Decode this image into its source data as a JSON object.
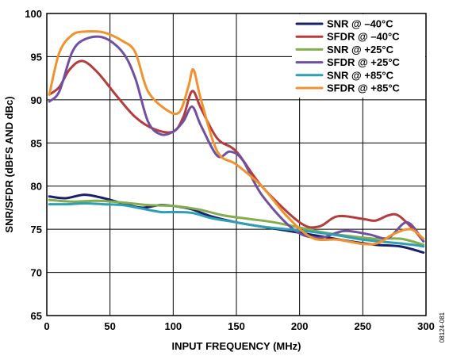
{
  "chart_data": {
    "type": "line",
    "title": "",
    "xlabel": "INPUT FREQUENCY (MHz)",
    "ylabel": "SNR/SFDR (dBFS AND dBc)",
    "xlim": [
      0,
      300
    ],
    "ylim": [
      65,
      100
    ],
    "xticks": [
      0,
      50,
      100,
      150,
      200,
      250,
      300
    ],
    "yticks": [
      65,
      70,
      75,
      80,
      85,
      90,
      95,
      100
    ],
    "grid": true,
    "legend_position": "top-right",
    "figure_id": "08124-081",
    "series": [
      {
        "name": "SNR @ –40°C",
        "color": "#1b1f6b",
        "x": [
          2,
          15,
          30,
          45,
          60,
          75,
          90,
          105,
          115,
          130,
          150,
          170,
          200,
          220,
          240,
          260,
          280,
          298
        ],
        "y": [
          78.8,
          78.6,
          79.0,
          78.6,
          78.0,
          77.5,
          77.8,
          77.6,
          77.3,
          76.5,
          75.8,
          75.3,
          74.6,
          74.1,
          73.6,
          73.2,
          73.0,
          72.3
        ]
      },
      {
        "name": "SFDR @ –40°C",
        "color": "#b43c3c",
        "x": [
          2,
          10,
          18,
          28,
          40,
          55,
          70,
          85,
          100,
          108,
          115,
          122,
          135,
          150,
          170,
          200,
          215,
          230,
          250,
          260,
          270,
          278,
          290,
          298
        ],
        "y": [
          90.6,
          91.5,
          93.5,
          94.5,
          93.2,
          90.5,
          88.0,
          86.6,
          86.3,
          88.0,
          91.0,
          89.0,
          85.5,
          84.0,
          80.0,
          75.8,
          75.3,
          76.5,
          76.2,
          76.0,
          76.6,
          76.6,
          75.0,
          73.6
        ]
      },
      {
        "name": "SNR @ +25°C",
        "color": "#84ad4e",
        "x": [
          2,
          20,
          40,
          60,
          80,
          100,
          120,
          140,
          160,
          180,
          200,
          220,
          240,
          260,
          280,
          298
        ],
        "y": [
          78.4,
          78.2,
          78.3,
          78.1,
          77.8,
          77.7,
          77.3,
          76.6,
          76.2,
          75.8,
          75.2,
          74.6,
          74.2,
          73.9,
          73.9,
          73.2
        ]
      },
      {
        "name": "SFDR @ +25°C",
        "color": "#7050a0",
        "x": [
          2,
          10,
          20,
          30,
          45,
          60,
          70,
          80,
          90,
          100,
          108,
          115,
          122,
          135,
          145,
          155,
          170,
          195,
          215,
          235,
          255,
          270,
          285,
          298
        ],
        "y": [
          89.8,
          91.0,
          95.5,
          97.0,
          97.2,
          95.5,
          92.5,
          87.5,
          86.0,
          86.3,
          87.5,
          89.2,
          87.0,
          83.5,
          84.0,
          83.0,
          79.0,
          75.0,
          74.0,
          74.8,
          74.4,
          74.0,
          75.8,
          73.6
        ]
      },
      {
        "name": "SNR @ +85°C",
        "color": "#2fa0b4",
        "x": [
          2,
          15,
          30,
          45,
          60,
          75,
          90,
          100,
          115,
          130,
          150,
          170,
          190,
          210,
          230,
          250,
          270,
          290,
          298
        ],
        "y": [
          77.9,
          77.9,
          78.0,
          77.9,
          77.8,
          77.4,
          77.0,
          77.0,
          76.9,
          76.3,
          75.8,
          75.3,
          75.0,
          74.7,
          74.3,
          73.8,
          73.5,
          73.2,
          73.0
        ]
      },
      {
        "name": "SFDR @ +85°C",
        "color": "#f0922d",
        "x": [
          2,
          10,
          20,
          30,
          45,
          60,
          70,
          80,
          95,
          105,
          112,
          116,
          122,
          135,
          150,
          170,
          190,
          210,
          230,
          250,
          262,
          275,
          288,
          298
        ],
        "y": [
          90.6,
          95.5,
          97.5,
          97.9,
          97.8,
          96.8,
          95.5,
          91.0,
          88.8,
          88.6,
          91.5,
          93.5,
          90.0,
          84.0,
          82.5,
          80.0,
          76.5,
          74.0,
          73.8,
          73.3,
          73.4,
          74.5,
          75.0,
          73.9
        ]
      }
    ]
  }
}
